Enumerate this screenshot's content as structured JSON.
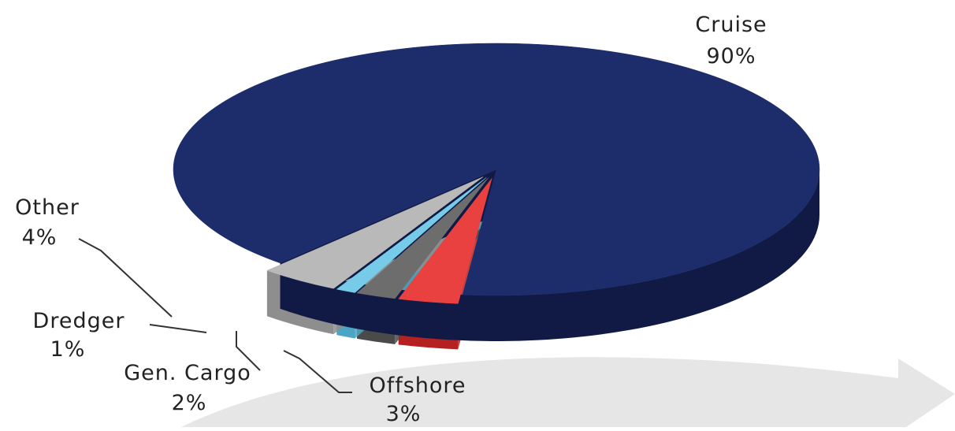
{
  "chart_data": {
    "type": "pie",
    "style": "3d-exploded",
    "title": "",
    "slices": [
      {
        "label": "Cruise",
        "value": 90,
        "value_label": "90%",
        "color": "#1d2d6b",
        "side_color": "#101a45"
      },
      {
        "label": "Offshore",
        "value": 3,
        "value_label": "3%",
        "color": "#e94040",
        "side_color": "#b52020"
      },
      {
        "label": "Gen. Cargo",
        "value": 2,
        "value_label": "2%",
        "color": "#6d6d6d",
        "side_color": "#4a4a4a"
      },
      {
        "label": "Dredger",
        "value": 1,
        "value_label": "1%",
        "color": "#76cbe8",
        "side_color": "#4ba5c4"
      },
      {
        "label": "Other",
        "value": 4,
        "value_label": "4%",
        "color": "#b9b9b9",
        "side_color": "#8e8e8e"
      }
    ],
    "decoration": {
      "background_arrow_color": "#e6e6e6"
    }
  }
}
